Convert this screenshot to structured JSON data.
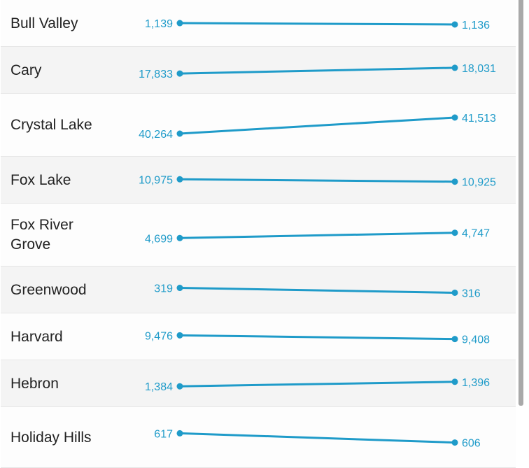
{
  "chart_data": {
    "type": "slope",
    "line_color": "#1f9bc9",
    "categories": [
      "Bull Valley",
      "Cary",
      "Crystal Lake",
      "Fox Lake",
      "Fox River Grove",
      "Greenwood",
      "Harvard",
      "Hebron",
      "Holiday Hills"
    ],
    "start_labels": [
      "1,139",
      "17,833",
      "40,264",
      "10,975",
      "4,699",
      "319",
      "9,476",
      "1,384",
      "617"
    ],
    "end_labels": [
      "1,136",
      "18,031",
      "41,513",
      "10,925",
      "4,747",
      "316",
      "9,408",
      "1,396",
      "606"
    ],
    "start_values": [
      1139,
      17833,
      40264,
      10975,
      4699,
      319,
      9476,
      1384,
      617
    ],
    "end_values": [
      1136,
      18031,
      41513,
      10925,
      4747,
      316,
      9408,
      1396,
      606
    ]
  }
}
